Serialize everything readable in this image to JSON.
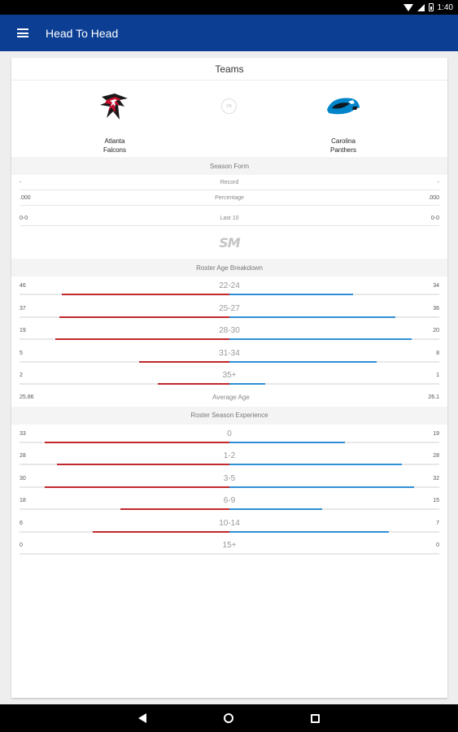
{
  "status_bar": {
    "time": "1:40"
  },
  "app_bar": {
    "title": "Head To Head"
  },
  "card": {
    "title": "Teams",
    "vs": "VS",
    "left_team": {
      "name_line1": "Atlanta",
      "name_line2": "Falcons",
      "color": "#c0282d"
    },
    "right_team": {
      "name_line1": "Carolina",
      "name_line2": "Panthers",
      "color": "#2f8fd4"
    }
  },
  "season_form": {
    "title": "Season Form",
    "rows": [
      {
        "label": "Record",
        "left": "-",
        "right": "-"
      },
      {
        "label": "Percentage",
        "left": ".000",
        "right": ".000"
      },
      {
        "label": "Last 10",
        "left": "0-0",
        "right": "0-0"
      }
    ]
  },
  "brand": {
    "logo_text": "SM"
  },
  "age_breakdown": {
    "title": "Roster Age Breakdown",
    "rows": [
      {
        "label": "22-24",
        "left": "46",
        "right": "34",
        "left_frac": 0.8,
        "right_frac": 0.59
      },
      {
        "label": "25-27",
        "left": "37",
        "right": "36",
        "left_frac": 0.81,
        "right_frac": 0.79
      },
      {
        "label": "28-30",
        "left": "19",
        "right": "20",
        "left_frac": 0.83,
        "right_frac": 0.87
      },
      {
        "label": "31-34",
        "left": "5",
        "right": "8",
        "left_frac": 0.43,
        "right_frac": 0.7
      },
      {
        "label": "35+",
        "left": "2",
        "right": "1",
        "left_frac": 0.34,
        "right_frac": 0.17
      }
    ],
    "average": {
      "label": "Average Age",
      "left": "25.86",
      "right": "26.1"
    }
  },
  "experience": {
    "title": "Roster Season Experience",
    "rows": [
      {
        "label": "0",
        "left": "33",
        "right": "19",
        "left_frac": 0.88,
        "right_frac": 0.55
      },
      {
        "label": "1-2",
        "left": "28",
        "right": "28",
        "left_frac": 0.82,
        "right_frac": 0.82
      },
      {
        "label": "3-5",
        "left": "30",
        "right": "32",
        "left_frac": 0.88,
        "right_frac": 0.88
      },
      {
        "label": "6-9",
        "left": "18",
        "right": "15",
        "left_frac": 0.52,
        "right_frac": 0.44
      },
      {
        "label": "10-14",
        "left": "6",
        "right": "7",
        "left_frac": 0.65,
        "right_frac": 0.76
      },
      {
        "label": "15+",
        "left": "0",
        "right": "0",
        "left_frac": 0,
        "right_frac": 0
      }
    ]
  }
}
